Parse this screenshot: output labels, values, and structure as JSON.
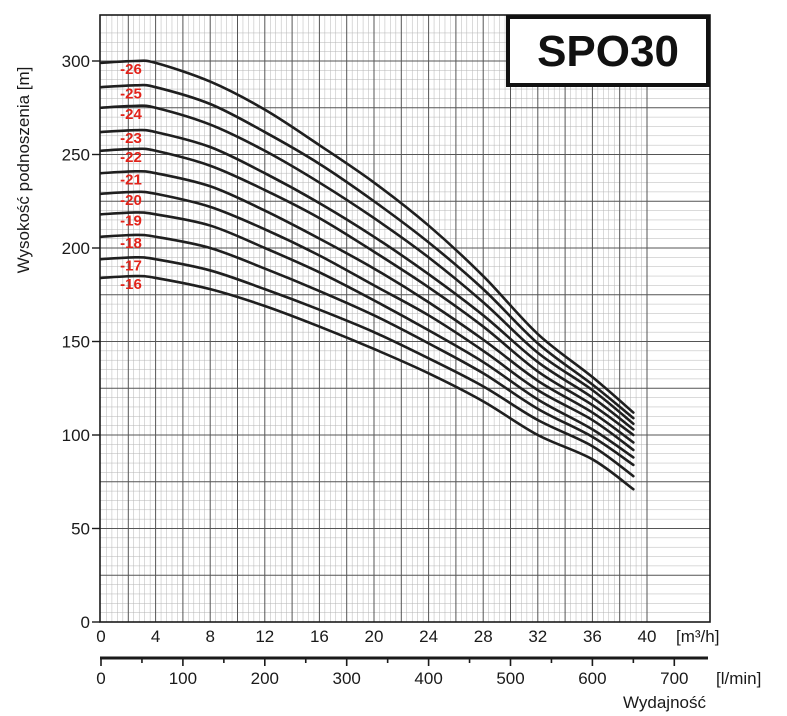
{
  "chart_data": {
    "type": "line",
    "title": "SPO30",
    "ylabel": "Wysokość podnoszenia [m]",
    "xlabel": "Wydajność",
    "x_unit": "[m³/h]",
    "x2_unit": "[l/min]",
    "xlim": [
      0,
      40
    ],
    "ylim": [
      0,
      300
    ],
    "x_ticks": [
      0,
      4,
      8,
      12,
      16,
      20,
      24,
      28,
      32,
      36,
      40
    ],
    "x2_ticks": [
      0,
      100,
      200,
      300,
      400,
      500,
      600,
      700
    ],
    "y_ticks": [
      0,
      50,
      100,
      150,
      200,
      250,
      300
    ],
    "grid": true,
    "x": [
      0,
      2.5,
      4,
      8,
      12,
      16,
      20,
      24,
      28,
      32,
      36,
      39
    ],
    "series": [
      {
        "name": "-26",
        "values": [
          299,
          300,
          299,
          289,
          274,
          255,
          235,
          212,
          185,
          154,
          131,
          112
        ]
      },
      {
        "name": "-25",
        "values": [
          286,
          287,
          286,
          277,
          262,
          245,
          225,
          203,
          178,
          149,
          127,
          109
        ]
      },
      {
        "name": "-24",
        "values": [
          275,
          276,
          275,
          266,
          252,
          235,
          216,
          195,
          171,
          144,
          124,
          106
        ]
      },
      {
        "name": "-23",
        "values": [
          262,
          263,
          262,
          254,
          240,
          224,
          206,
          186,
          164,
          139,
          120,
          103
        ]
      },
      {
        "name": "-22",
        "values": [
          252,
          253,
          252,
          244,
          231,
          216,
          198,
          179,
          158,
          134,
          116,
          100
        ]
      },
      {
        "name": "-21",
        "values": [
          240,
          241,
          240,
          233,
          220,
          205,
          189,
          171,
          151,
          129,
          112,
          96
        ]
      },
      {
        "name": "-20",
        "values": [
          229,
          230,
          229,
          222,
          210,
          196,
          180,
          164,
          145,
          124,
          108,
          92
        ]
      },
      {
        "name": "-19",
        "values": [
          218,
          219,
          218,
          212,
          200,
          187,
          172,
          156,
          139,
          119,
          103,
          88
        ]
      },
      {
        "name": "-18",
        "values": [
          206,
          207,
          206,
          200,
          189,
          177,
          164,
          149,
          133,
          114,
          99,
          84
        ]
      },
      {
        "name": "-17",
        "values": [
          194,
          195,
          194,
          188,
          178,
          167,
          155,
          141,
          126,
          108,
          94,
          78
        ]
      },
      {
        "name": "-16",
        "values": [
          184,
          185,
          184,
          178,
          169,
          158,
          146,
          133,
          118,
          100,
          87,
          71
        ]
      }
    ]
  },
  "colors": {
    "curve": "#1f1f1f",
    "label": "#e2231a",
    "grid_major": "#555555",
    "grid_minor": "#b5b5b5"
  }
}
